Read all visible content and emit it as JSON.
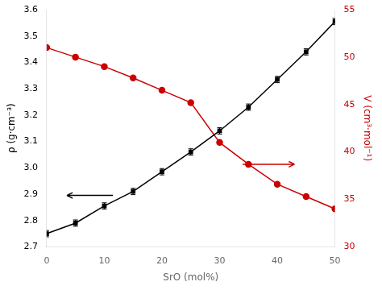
{
  "chart_data": {
    "type": "line",
    "xlabel": "SrO (mol%)",
    "ylabel": "ρ (g·cm⁻³)",
    "y2label": "V (cm³·mol⁻¹)",
    "x": [
      0,
      5,
      10,
      15,
      20,
      25,
      30,
      35,
      40,
      45,
      50
    ],
    "series": [
      {
        "color": "#000000",
        "marker": "square",
        "line_style": "solid",
        "axis": "y",
        "values": [
          2.75,
          2.79,
          2.855,
          2.91,
          2.985,
          3.06,
          3.14,
          3.23,
          3.335,
          3.44,
          3.555
        ],
        "errors": [
          0.012,
          0.012,
          0.012,
          0.012,
          0.012,
          0.012,
          0.012,
          0.012,
          0.012,
          0.012,
          0.012
        ]
      },
      {
        "color": "#cc0000",
        "marker": "circle",
        "line_style": "solid",
        "axis": "y2",
        "values": [
          51.0,
          50.0,
          49.0,
          47.8,
          46.5,
          45.2,
          41.0,
          38.7,
          36.6,
          35.3,
          34.0
        ]
      }
    ],
    "xlim": [
      0,
      50
    ],
    "xticks": [
      0,
      10,
      20,
      30,
      40,
      50
    ],
    "ylim": [
      2.7,
      3.6
    ],
    "yticks": [
      2.7,
      2.8,
      2.9,
      {
        "value": 3.0,
        "label": "3.0"
      },
      3.1,
      3.2,
      3.3,
      3.4,
      3.5,
      3.6
    ],
    "y2lim": [
      30,
      55
    ],
    "y2ticks": [
      30,
      35,
      40,
      45,
      50,
      55
    ],
    "grid": false,
    "arrows": [
      {
        "from": [
          11.5,
          2.895
        ],
        "to": [
          3.5,
          2.895
        ],
        "axis": "y",
        "color": "#000000"
      },
      {
        "from": [
          34.0,
          38.7
        ],
        "to": [
          43.0,
          38.7
        ],
        "axis": "y2",
        "color": "#cc0000"
      }
    ]
  }
}
